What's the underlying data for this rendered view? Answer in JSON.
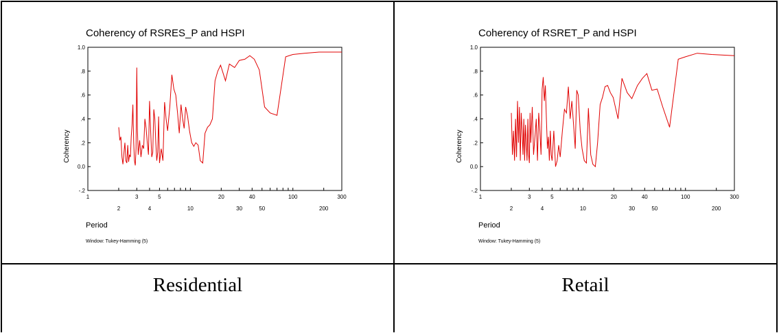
{
  "captions": {
    "left": "Residential",
    "right": "Retail"
  },
  "chart_data": [
    {
      "type": "line",
      "title": "Coherency of RSRES_P and HSPI",
      "xlabel": "Period",
      "ylabel": "Coherency",
      "footnote": "Window: Tukey-Hamming (5)",
      "x_scale": "log",
      "xlim": [
        1,
        300
      ],
      "ylim": [
        -0.2,
        1.0
      ],
      "yticks": [
        -0.2,
        0.0,
        0.2,
        0.4,
        0.6,
        0.8,
        1.0
      ],
      "ytick_labels": [
        "-.2",
        "0.0",
        ".2",
        ".4",
        ".6",
        ".8",
        "1.0"
      ],
      "xticks_upper": [
        1,
        3,
        5,
        20,
        40,
        100,
        300
      ],
      "xticks_lower": [
        2,
        4,
        10,
        30,
        50,
        200
      ],
      "grid": false,
      "line_color": "#e00000",
      "series": [
        {
          "x": [
            2.0,
            2.05,
            2.1,
            2.15,
            2.2,
            2.25,
            2.3,
            2.35,
            2.4,
            2.45,
            2.5,
            2.55,
            2.6,
            2.65,
            2.7,
            2.75,
            2.8,
            2.85,
            2.9,
            2.95,
            3.0,
            3.05,
            3.1,
            3.2,
            3.3,
            3.4,
            3.5,
            3.6,
            3.7,
            3.8,
            3.9,
            4.0,
            4.1,
            4.2,
            4.3,
            4.4,
            4.5,
            4.6,
            4.7,
            4.8,
            4.9,
            5.0,
            5.2,
            5.4,
            5.6,
            5.8,
            6.0,
            6.3,
            6.6,
            6.9,
            7.2,
            7.5,
            7.8,
            8.1,
            8.4,
            8.7,
            9.0,
            9.4,
            9.8,
            10.3,
            10.8,
            11.3,
            11.9,
            12.5,
            13.2,
            13.9,
            14.7,
            15.5,
            16.4,
            17.4,
            18.5,
            19.7,
            22.0,
            24.0,
            27.0,
            30.0,
            34.0,
            38.0,
            42.0,
            47.0,
            53.0,
            60.0,
            70.0,
            85.0,
            100.0,
            130.0,
            180.0,
            300.0
          ],
          "y": [
            0.33,
            0.22,
            0.25,
            0.08,
            0.02,
            0.12,
            0.2,
            0.05,
            0.03,
            0.18,
            0.04,
            0.1,
            0.08,
            0.25,
            0.35,
            0.52,
            0.2,
            0.05,
            0.01,
            0.15,
            0.83,
            0.3,
            0.1,
            0.22,
            0.08,
            0.18,
            0.15,
            0.4,
            0.32,
            0.2,
            0.1,
            0.55,
            0.3,
            0.08,
            0.12,
            0.48,
            0.4,
            0.2,
            0.05,
            0.12,
            0.42,
            0.03,
            0.15,
            0.05,
            0.54,
            0.4,
            0.3,
            0.5,
            0.77,
            0.65,
            0.6,
            0.45,
            0.28,
            0.52,
            0.4,
            0.32,
            0.5,
            0.42,
            0.3,
            0.2,
            0.17,
            0.2,
            0.18,
            0.05,
            0.03,
            0.28,
            0.33,
            0.35,
            0.4,
            0.72,
            0.8,
            0.85,
            0.72,
            0.86,
            0.83,
            0.89,
            0.9,
            0.93,
            0.9,
            0.81,
            0.5,
            0.45,
            0.43,
            0.92,
            0.94,
            0.95,
            0.96,
            0.96
          ]
        }
      ]
    },
    {
      "type": "line",
      "title": "Coherency of RSRET_P and HSPI",
      "xlabel": "Period",
      "ylabel": "Coherency",
      "footnote": "Window: Tukey-Hamming (5)",
      "x_scale": "log",
      "xlim": [
        1,
        300
      ],
      "ylim": [
        -0.2,
        1.0
      ],
      "yticks": [
        -0.2,
        0.0,
        0.2,
        0.4,
        0.6,
        0.8,
        1.0
      ],
      "ytick_labels": [
        "-.2",
        "0.0",
        ".2",
        ".4",
        ".6",
        ".8",
        "1.0"
      ],
      "xticks_upper": [
        1,
        3,
        5,
        20,
        40,
        100,
        300
      ],
      "xticks_lower": [
        2,
        4,
        10,
        30,
        50,
        200
      ],
      "grid": false,
      "line_color": "#e00000",
      "series": [
        {
          "x": [
            2.0,
            2.05,
            2.1,
            2.15,
            2.2,
            2.25,
            2.3,
            2.35,
            2.4,
            2.45,
            2.5,
            2.55,
            2.6,
            2.65,
            2.7,
            2.75,
            2.8,
            2.85,
            2.9,
            2.95,
            3.0,
            3.05,
            3.1,
            3.2,
            3.3,
            3.4,
            3.5,
            3.6,
            3.7,
            3.8,
            3.9,
            4.0,
            4.1,
            4.2,
            4.3,
            4.4,
            4.5,
            4.6,
            4.7,
            4.8,
            4.9,
            5.0,
            5.2,
            5.4,
            5.6,
            5.8,
            6.0,
            6.3,
            6.6,
            6.9,
            7.2,
            7.5,
            7.8,
            8.1,
            8.4,
            8.7,
            9.0,
            9.4,
            9.8,
            10.3,
            10.8,
            11.3,
            11.9,
            12.5,
            13.2,
            13.9,
            14.7,
            15.5,
            16.4,
            17.4,
            18.5,
            19.7,
            22.0,
            24.0,
            27.0,
            30.0,
            34.0,
            38.0,
            42.0,
            47.0,
            53.0,
            60.0,
            70.0,
            85.0,
            100.0,
            130.0,
            180.0,
            300.0
          ],
          "y": [
            0.45,
            0.1,
            0.3,
            0.05,
            0.4,
            0.08,
            0.55,
            0.2,
            0.5,
            0.05,
            0.45,
            0.3,
            0.1,
            0.4,
            0.05,
            0.35,
            0.2,
            0.05,
            0.4,
            0.1,
            0.03,
            0.45,
            0.2,
            0.5,
            0.1,
            0.25,
            0.4,
            0.05,
            0.45,
            0.3,
            0.1,
            0.65,
            0.75,
            0.55,
            0.68,
            0.4,
            0.15,
            0.25,
            0.05,
            0.3,
            0.1,
            0.05,
            0.3,
            0.0,
            0.05,
            0.18,
            0.08,
            0.3,
            0.48,
            0.45,
            0.67,
            0.4,
            0.55,
            0.35,
            0.15,
            0.64,
            0.6,
            0.3,
            0.15,
            0.05,
            0.03,
            0.49,
            0.1,
            0.02,
            0.0,
            0.2,
            0.52,
            0.58,
            0.67,
            0.68,
            0.62,
            0.58,
            0.4,
            0.74,
            0.62,
            0.57,
            0.68,
            0.74,
            0.78,
            0.64,
            0.65,
            0.5,
            0.33,
            0.9,
            0.92,
            0.95,
            0.94,
            0.93
          ]
        }
      ]
    }
  ]
}
